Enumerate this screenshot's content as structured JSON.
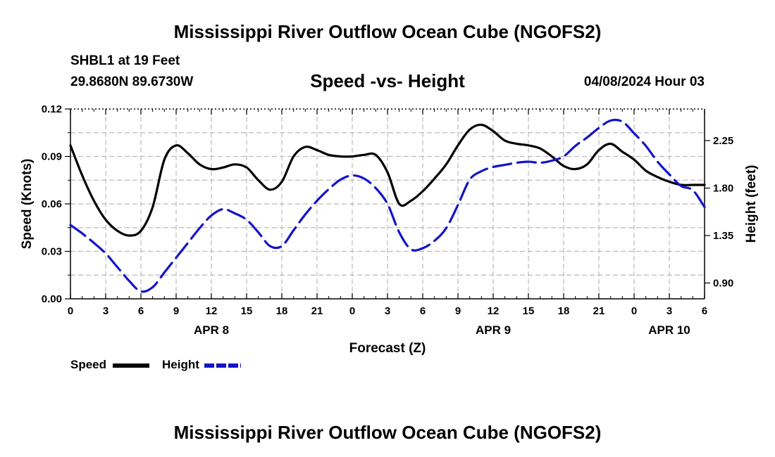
{
  "titles": {
    "top": "Mississippi River Outflow Ocean Cube (NGOFS2)",
    "bottom": "Mississippi River Outflow Ocean Cube (NGOFS2)"
  },
  "header": {
    "station": "SHBL1 at 19 Feet",
    "coords": "29.8680N  89.6730W",
    "subtitle": "Speed -vs- Height",
    "date": "04/08/2024 Hour 03"
  },
  "legend": {
    "speed_label": "Speed",
    "height_label": "Height"
  },
  "colors": {
    "speed": "#000000",
    "height": "#1414c8",
    "grid": "#bbbbbb"
  },
  "chart_data": {
    "type": "line",
    "xlabel": "Forecast (Z)",
    "ylabel": "Speed (Knots)",
    "y2label": "Height (feet)",
    "x_range": [
      0,
      54
    ],
    "x_tick_labels": [
      "0",
      "3",
      "6",
      "9",
      "12",
      "15",
      "18",
      "21",
      "0",
      "3",
      "6",
      "9",
      "12",
      "15",
      "18",
      "21",
      "0",
      "3",
      "6"
    ],
    "day_labels": [
      {
        "x": 12,
        "label": "APR 8"
      },
      {
        "x": 36,
        "label": "APR 9"
      },
      {
        "x": 51,
        "label": "APR 10"
      }
    ],
    "ylim": [
      0,
      0.12
    ],
    "y_ticks": [
      0,
      0.03,
      0.06,
      0.09,
      0.12
    ],
    "y_tick_labels": [
      "0.00",
      "0.03",
      "0.06",
      "0.09",
      "0.12"
    ],
    "y2lim": [
      0.75,
      2.55
    ],
    "y2_ticks": [
      0.9,
      1.35,
      1.8,
      2.25
    ],
    "y2_tick_labels": [
      "0.90",
      "1.35",
      "1.80",
      "2.25"
    ],
    "series": [
      {
        "name": "Speed",
        "axis": "left",
        "style": "solid",
        "x": [
          0,
          1,
          2,
          3,
          4,
          5,
          6,
          7,
          8,
          9,
          10,
          11,
          12,
          13,
          14,
          15,
          16,
          17,
          18,
          19,
          20,
          21,
          22,
          23,
          24,
          25,
          26,
          27,
          28,
          29,
          30,
          31,
          32,
          33,
          34,
          35,
          36,
          37,
          38,
          39,
          40,
          41,
          42,
          43,
          44,
          45,
          46,
          47,
          48,
          49,
          50,
          51,
          52,
          53,
          54
        ],
        "values": [
          0.097,
          0.078,
          0.062,
          0.05,
          0.043,
          0.04,
          0.043,
          0.058,
          0.088,
          0.097,
          0.092,
          0.085,
          0.082,
          0.083,
          0.085,
          0.083,
          0.075,
          0.069,
          0.074,
          0.09,
          0.096,
          0.094,
          0.091,
          0.09,
          0.09,
          0.091,
          0.091,
          0.08,
          0.06,
          0.062,
          0.068,
          0.076,
          0.085,
          0.097,
          0.107,
          0.11,
          0.106,
          0.1,
          0.098,
          0.097,
          0.095,
          0.09,
          0.084,
          0.082,
          0.085,
          0.094,
          0.098,
          0.093,
          0.088,
          0.081,
          0.077,
          0.074,
          0.072,
          0.072,
          0.072
        ]
      },
      {
        "name": "Height",
        "axis": "right",
        "style": "dashed",
        "x": [
          0,
          1,
          2,
          3,
          4,
          5,
          6,
          7,
          8,
          9,
          10,
          11,
          12,
          13,
          14,
          15,
          16,
          17,
          18,
          19,
          20,
          21,
          22,
          23,
          24,
          25,
          26,
          27,
          28,
          29,
          30,
          31,
          32,
          33,
          34,
          35,
          36,
          37,
          38,
          39,
          40,
          41,
          42,
          43,
          44,
          45,
          46,
          47,
          48,
          49,
          50,
          51,
          52,
          53,
          54
        ],
        "values": [
          1.45,
          1.37,
          1.28,
          1.18,
          1.05,
          0.92,
          0.82,
          0.86,
          1.0,
          1.14,
          1.28,
          1.42,
          1.54,
          1.6,
          1.56,
          1.5,
          1.38,
          1.25,
          1.25,
          1.4,
          1.55,
          1.68,
          1.79,
          1.88,
          1.92,
          1.89,
          1.8,
          1.65,
          1.38,
          1.22,
          1.23,
          1.3,
          1.42,
          1.64,
          1.88,
          1.96,
          2.0,
          2.02,
          2.04,
          2.05,
          2.04,
          2.06,
          2.1,
          2.2,
          2.28,
          2.37,
          2.44,
          2.43,
          2.32,
          2.2,
          2.05,
          1.93,
          1.82,
          1.78,
          1.62
        ]
      }
    ]
  }
}
